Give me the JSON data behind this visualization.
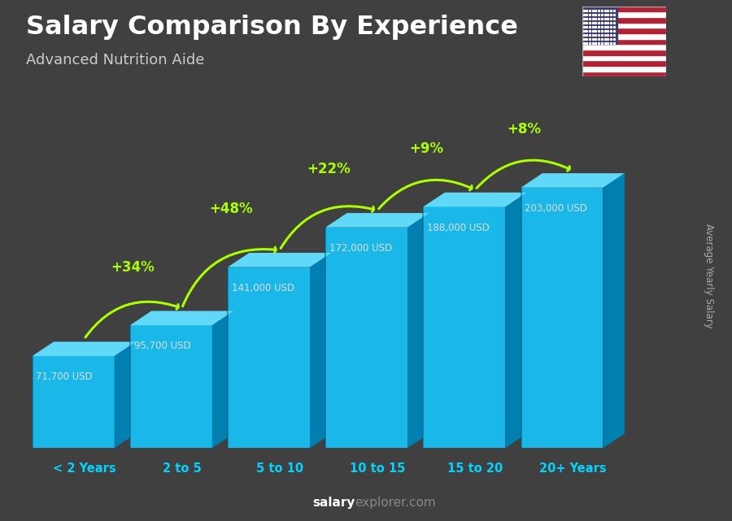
{
  "title": "Salary Comparison By Experience",
  "subtitle": "Advanced Nutrition Aide",
  "categories": [
    "< 2 Years",
    "2 to 5",
    "5 to 10",
    "10 to 15",
    "15 to 20",
    "20+ Years"
  ],
  "values": [
    71700,
    95700,
    141000,
    172000,
    188000,
    203000
  ],
  "labels": [
    "71,700 USD",
    "95,700 USD",
    "141,000 USD",
    "172,000 USD",
    "188,000 USD",
    "203,000 USD"
  ],
  "pct_changes": [
    "+34%",
    "+48%",
    "+22%",
    "+9%",
    "+8%"
  ],
  "c_front": "#1ab8e8",
  "c_side": "#0080b0",
  "c_top": "#60d8f8",
  "bg_top": "#404040",
  "bg_bottom": "#555555",
  "header_bg": "#2a2a2a",
  "title_color": "#ffffff",
  "subtitle_color": "#cccccc",
  "label_color": "#dddddd",
  "pct_color": "#aaff00",
  "cat_color": "#00d4ff",
  "ylabel_color": "#aaaaaa",
  "source_bold_color": "#ffffff",
  "source_normal_color": "#888888",
  "ylabel_text": "Average Yearly Salary",
  "source_bold": "salary",
  "source_normal": "explorer.com"
}
